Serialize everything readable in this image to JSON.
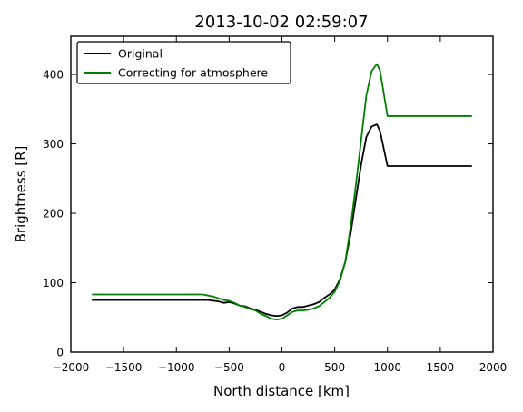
{
  "chart_data": {
    "type": "line",
    "title": "2013-10-02 02:59:07",
    "xlabel": "North distance [km]",
    "ylabel": "Brightness [R]",
    "xlim": [
      -2000,
      2000
    ],
    "ylim": [
      0,
      455
    ],
    "xticks": [
      -2000,
      -1500,
      -1000,
      -500,
      0,
      500,
      1000,
      1500,
      2000
    ],
    "xtick_labels": [
      "−2000",
      "−1500",
      "−1000",
      "−500",
      "0",
      "500",
      "1000",
      "1500",
      "2000"
    ],
    "yticks": [
      0,
      100,
      200,
      300,
      400
    ],
    "ytick_labels": [
      "0",
      "100",
      "200",
      "300",
      "400"
    ],
    "grid": false,
    "legend_position": "top-left",
    "series": [
      {
        "name": "Original",
        "color": "#000000",
        "x": [
          -1800,
          -1500,
          -1000,
          -700,
          -600,
          -550,
          -500,
          -450,
          -400,
          -350,
          -300,
          -250,
          -200,
          -150,
          -100,
          -50,
          0,
          50,
          100,
          150,
          200,
          250,
          300,
          350,
          400,
          450,
          500,
          550,
          600,
          650,
          700,
          750,
          800,
          850,
          900,
          930,
          1000,
          1200,
          1500,
          1800
        ],
        "y": [
          75,
          75,
          75,
          75,
          73,
          71,
          72,
          70,
          67,
          66,
          63,
          61,
          58,
          55,
          53,
          52,
          53,
          57,
          63,
          65,
          65,
          67,
          69,
          72,
          78,
          83,
          90,
          105,
          130,
          170,
          220,
          270,
          310,
          325,
          328,
          318,
          268,
          268,
          268,
          268
        ]
      },
      {
        "name": "Correcting for atmosphere",
        "color": "#008000",
        "x": [
          -1800,
          -1500,
          -1000,
          -750,
          -650,
          -550,
          -500,
          -450,
          -400,
          -350,
          -300,
          -250,
          -200,
          -150,
          -100,
          -50,
          0,
          50,
          100,
          150,
          200,
          250,
          300,
          350,
          400,
          450,
          500,
          550,
          600,
          650,
          700,
          750,
          800,
          850,
          900,
          930,
          1000,
          1200,
          1500,
          1800
        ],
        "y": [
          83,
          83,
          83,
          83,
          80,
          75,
          74,
          71,
          67,
          65,
          62,
          60,
          55,
          52,
          48,
          47,
          48,
          53,
          58,
          60,
          60,
          61,
          63,
          66,
          72,
          78,
          87,
          103,
          130,
          180,
          240,
          305,
          370,
          405,
          415,
          405,
          340,
          340,
          340,
          340
        ]
      }
    ]
  }
}
